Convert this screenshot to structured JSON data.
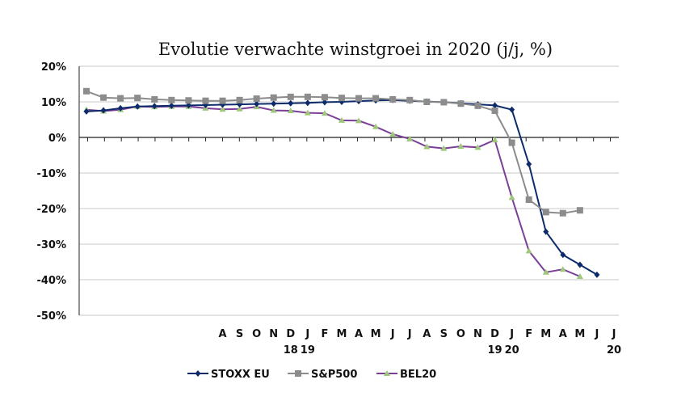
{
  "chart_data": {
    "type": "line",
    "title": "Evolutie verwachte winstgroei in 2020 (j/j, %)",
    "xlabel": "",
    "ylabel": "",
    "ylim": [
      -50,
      20
    ],
    "y_ticks": [
      "20%",
      "10%",
      "0%",
      "-10%",
      "-20%",
      "-30%",
      "-40%",
      "-50%"
    ],
    "y_tick_values": [
      20,
      10,
      0,
      -10,
      -20,
      -30,
      -40,
      -50
    ],
    "grid": "horizontal",
    "legend_position": "bottom",
    "month_labels": [
      {
        "label": "A",
        "index": 8
      },
      {
        "label": "S",
        "index": 9
      },
      {
        "label": "O",
        "index": 10
      },
      {
        "label": "N",
        "index": 11
      },
      {
        "label": "D",
        "index": 12
      },
      {
        "label": "J",
        "index": 13
      },
      {
        "label": "F",
        "index": 14
      },
      {
        "label": "M",
        "index": 15
      },
      {
        "label": "A",
        "index": 16
      },
      {
        "label": "M",
        "index": 17
      },
      {
        "label": "J",
        "index": 18
      },
      {
        "label": "J",
        "index": 19
      },
      {
        "label": "A",
        "index": 20
      },
      {
        "label": "S",
        "index": 21
      },
      {
        "label": "O",
        "index": 22
      },
      {
        "label": "N",
        "index": 23
      },
      {
        "label": "D",
        "index": 24
      },
      {
        "label": "J",
        "index": 25
      },
      {
        "label": "F",
        "index": 26
      },
      {
        "label": "M",
        "index": 27
      },
      {
        "label": "A",
        "index": 28
      },
      {
        "label": "M",
        "index": 29
      },
      {
        "label": "J",
        "index": 30
      },
      {
        "label": "J",
        "index": 31
      }
    ],
    "year_labels": [
      {
        "label": "18",
        "index": 12
      },
      {
        "label": "19",
        "index": 13
      },
      {
        "label": "19",
        "index": 24
      },
      {
        "label": "20",
        "index": 25
      },
      {
        "label": "20",
        "index": 31
      }
    ],
    "series": [
      {
        "name": "STOXX EU",
        "color": "#0d2b6b",
        "marker": "diamond",
        "values": [
          7.3,
          7.6,
          8.2,
          8.7,
          8.8,
          8.9,
          9.0,
          9.1,
          9.2,
          9.3,
          9.4,
          9.5,
          9.6,
          9.7,
          9.9,
          10.0,
          10.2,
          10.4,
          10.5,
          10.3,
          10.1,
          9.9,
          9.6,
          9.3,
          9.0,
          7.8,
          -7.5,
          -26.5,
          -33.0,
          -35.8,
          -38.6
        ]
      },
      {
        "name": "S&P500",
        "color": "#8c8c8c",
        "marker": "square",
        "values": [
          13.0,
          11.2,
          11.0,
          11.1,
          10.7,
          10.5,
          10.4,
          10.3,
          10.3,
          10.5,
          10.9,
          11.2,
          11.4,
          11.4,
          11.3,
          11.1,
          11.0,
          11.0,
          10.7,
          10.5,
          10.0,
          9.9,
          9.5,
          8.9,
          7.5,
          -1.5,
          -17.5,
          -21.0,
          -21.3,
          -20.5
        ]
      },
      {
        "name": "BEL20",
        "color": "#7b3f98",
        "marker": "triangle",
        "values": [
          7.8,
          7.4,
          7.8,
          8.7,
          8.6,
          8.7,
          8.7,
          8.2,
          7.9,
          8.0,
          8.6,
          7.6,
          7.5,
          6.9,
          6.8,
          4.8,
          4.7,
          3.0,
          0.9,
          -0.4,
          -2.6,
          -3.1,
          -2.5,
          -2.8,
          -0.7,
          -16.9,
          -31.9,
          -37.9,
          -37.1,
          -39.1
        ]
      }
    ]
  }
}
